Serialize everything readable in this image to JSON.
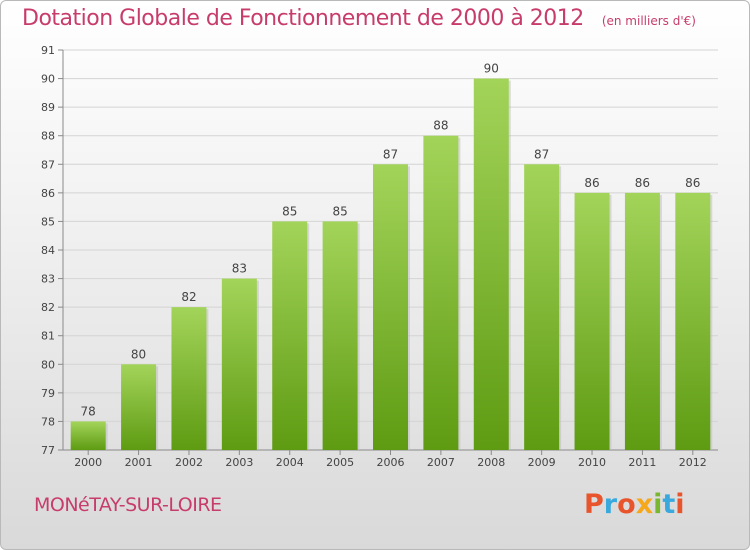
{
  "header": {
    "title": "Dotation Globale de Fonctionnement de 2000 à 2012",
    "subtitle": "(en milliers d'€)"
  },
  "footer": {
    "commune": "MONéTAY-SUR-LOIRE",
    "logo": "Proxiti",
    "logo_colors": [
      "#e8542b",
      "#39a9dd",
      "#e8542b",
      "#f5a81c",
      "#7ab730",
      "#39a9dd",
      "#e8542b"
    ]
  },
  "chart_data": {
    "type": "bar",
    "categories": [
      "2000",
      "2001",
      "2002",
      "2003",
      "2004",
      "2005",
      "2006",
      "2007",
      "2008",
      "2009",
      "2010",
      "2011",
      "2012"
    ],
    "values": [
      78,
      80,
      82,
      83,
      85,
      85,
      87,
      88,
      90,
      87,
      86,
      86,
      86
    ],
    "ylim": [
      77,
      91
    ],
    "yticks": [
      77,
      78,
      79,
      80,
      81,
      82,
      83,
      84,
      85,
      86,
      87,
      88,
      89,
      90,
      91
    ],
    "grid": true,
    "bar_color_top": "#a3d45a",
    "bar_color_bottom": "#5e9b12"
  }
}
